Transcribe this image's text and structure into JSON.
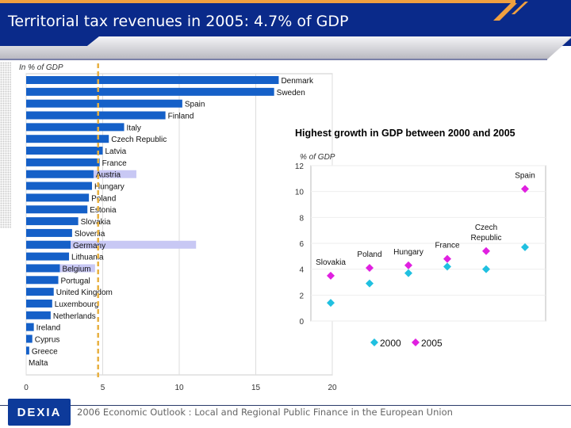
{
  "header": {
    "title": "Territorial tax revenues in 2005: 4.7% of GDP"
  },
  "footer": {
    "logo": "DEXIA",
    "text": "2006 Economic Outlook : Local and Regional Public Finance in the European Union"
  },
  "colors": {
    "header_blue": "#0a2a8a",
    "accent_orange": "#f0a040",
    "bar": "#1560c8",
    "highlight": "#c8c8f4",
    "avg_line": "#e8b040",
    "series_2000": "#20c0e0",
    "series_2005": "#e020e0"
  },
  "chart_data": [
    {
      "type": "bar",
      "orientation": "horizontal",
      "ylabel": "In % of GDP",
      "xlim": [
        0,
        20
      ],
      "xticks": [
        0,
        5,
        10,
        15,
        20
      ],
      "reference_line": {
        "value": 4.7,
        "style": "dashed"
      },
      "categories": [
        "Denmark",
        "Sweden",
        "Spain",
        "Finland",
        "Italy",
        "Czech Republic",
        "Latvia",
        "France",
        "Austria",
        "Hungary",
        "Poland",
        "Estonia",
        "Slovakia",
        "Slovenia",
        "Germany",
        "Lithuania",
        "Belgium",
        "Portugal",
        "United Kingdom",
        "Luxembourg",
        "Netherlands",
        "Ireland",
        "Cyprus",
        "Greece",
        "Malta"
      ],
      "values": [
        16.5,
        16.2,
        10.2,
        9.1,
        6.4,
        5.4,
        5.0,
        4.8,
        4.4,
        4.3,
        4.1,
        4.0,
        3.4,
        3.0,
        2.9,
        2.8,
        2.2,
        2.1,
        1.8,
        1.7,
        1.6,
        0.5,
        0.4,
        0.2,
        0.0
      ],
      "highlighted": {
        "Austria": 7.2,
        "Germany": 11.1,
        "Belgium": 4.5
      }
    },
    {
      "type": "scatter",
      "title": "Highest growth in GDP between 2000 and 2005",
      "ylabel": "% of GDP",
      "ylim": [
        0,
        12
      ],
      "yticks": [
        0,
        2,
        4,
        6,
        8,
        10,
        12
      ],
      "grid": true,
      "legend": "bottom",
      "categories": [
        "Slovakia",
        "Poland",
        "Hungary",
        "France",
        "Czech Republic",
        "Spain"
      ],
      "series": [
        {
          "name": "2000",
          "values": [
            1.4,
            2.9,
            3.7,
            4.2,
            4.0,
            5.7
          ]
        },
        {
          "name": "2005",
          "values": [
            3.5,
            4.1,
            4.3,
            4.8,
            5.4,
            10.2
          ]
        }
      ]
    }
  ]
}
